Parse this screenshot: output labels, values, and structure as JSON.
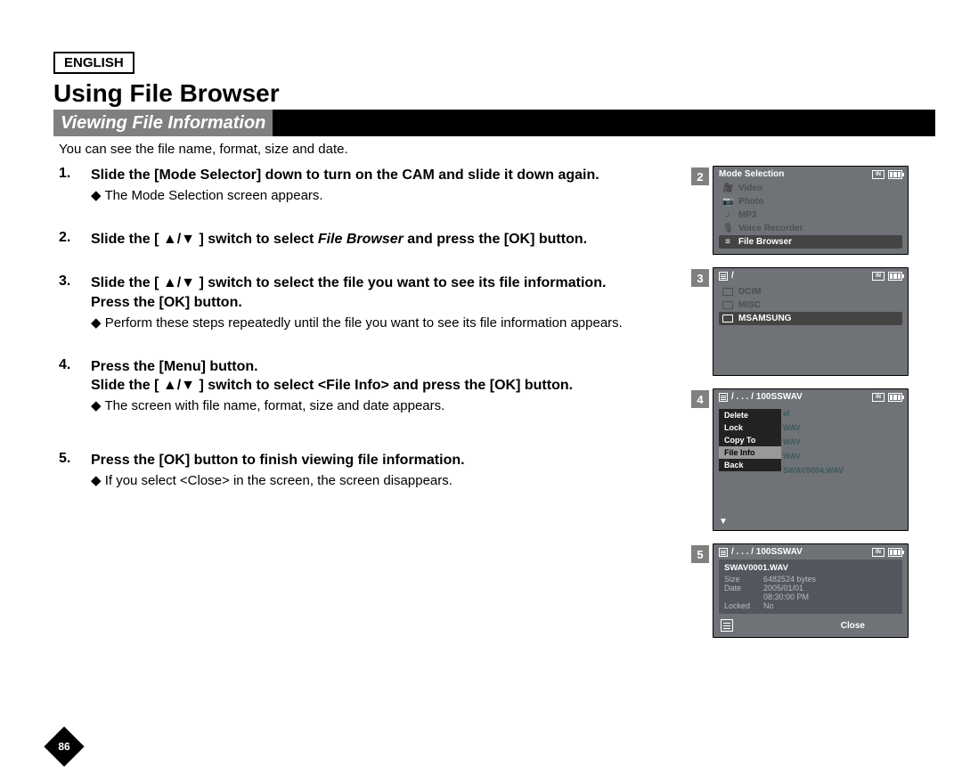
{
  "language_label": "ENGLISH",
  "title": "Using File Browser",
  "section_title": "Viewing File Information",
  "intro": "You can see the file name, format, size and date.",
  "page_number": "86",
  "steps": [
    {
      "head_before": "Slide the [Mode Selector] down to turn on the CAM and slide it down again.",
      "sub": "The Mode Selection screen appears."
    },
    {
      "head_a": "Slide the [ ▲/▼ ] switch to select ",
      "head_ital": "File Browser",
      "head_b": " and press the [OK] button.",
      "sub": ""
    },
    {
      "head_a": "Slide the [ ▲/▼ ] switch to select the file you want to see its file information.",
      "head_b": "Press the [OK] button.",
      "sub": "Perform these steps repeatedly until the file you want to see its file information appears."
    },
    {
      "head_a": "Press the [Menu] button.",
      "head_b": "Slide the [ ▲/▼ ] switch to select <File Info> and press the [OK] button.",
      "sub": "The screen with file name, format, size and date appears."
    },
    {
      "head_a": "Press the [OK] button to finish viewing file information.",
      "sub": "If you select <Close> in the screen, the screen disappears."
    }
  ],
  "screens": {
    "s2": {
      "num": "2",
      "title": "Mode Selection",
      "items": [
        {
          "icon": "🎥",
          "label": "Video"
        },
        {
          "icon": "📷",
          "label": "Photo"
        },
        {
          "icon": "♪",
          "label": "MP3"
        },
        {
          "icon": "🎙",
          "label": "Voice Recorder"
        },
        {
          "icon": "≡",
          "label": "File Browser",
          "selected": true
        }
      ]
    },
    "s3": {
      "num": "3",
      "path": "/",
      "folders": [
        {
          "label": "DCIM"
        },
        {
          "label": "MISC"
        },
        {
          "label": "MSAMSUNG",
          "selected": true
        }
      ]
    },
    "s4": {
      "num": "4",
      "path": "/ . . . / 100SSWAV",
      "menu": [
        {
          "label": "Delete"
        },
        {
          "label": "Lock"
        },
        {
          "label": "Copy To"
        },
        {
          "label": "File Info",
          "selected": true
        },
        {
          "label": "Back"
        }
      ],
      "ghost": [
        "el",
        "WAV",
        "WAV",
        "WAV",
        "SWAV0004.WAV"
      ]
    },
    "s5": {
      "num": "5",
      "path": "/ . . . / 100SSWAV",
      "file": "SWAV0001.WAV",
      "rows": [
        {
          "k": "Size",
          "v": "6482524 bytes"
        },
        {
          "k": "Date",
          "v": "2005/01/01"
        },
        {
          "k": "",
          "v": "08:30:00 PM"
        },
        {
          "k": "Locked",
          "v": "No"
        }
      ],
      "close": "Close"
    }
  },
  "colors": {
    "bar_bg": "#000000",
    "bar_inner": "#808080",
    "lcd_bg": "#6f7377",
    "sel_bg": "#444444",
    "muted": "#4b5053",
    "ghost": "#3c5a5a",
    "info_bg": "#51575c"
  },
  "mem_label": "IN"
}
